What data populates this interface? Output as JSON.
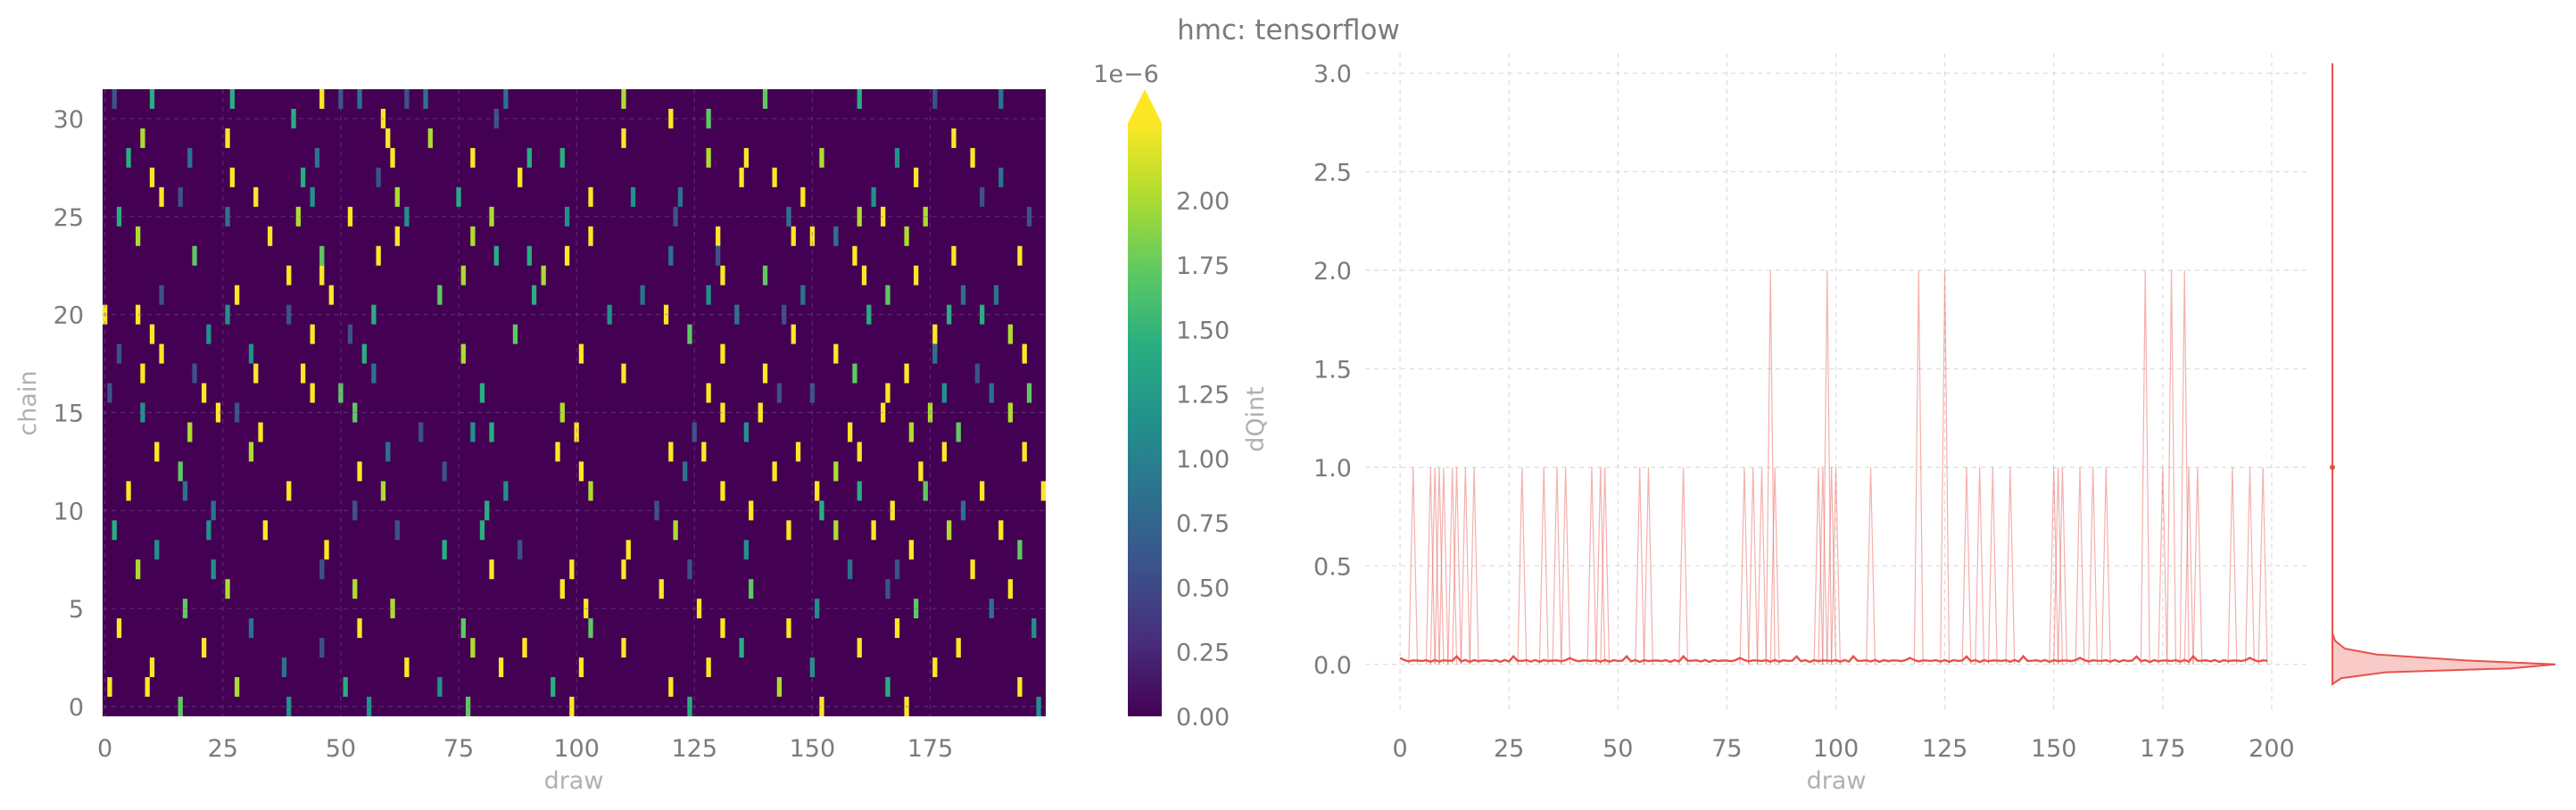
{
  "figure": {
    "title": "hmc: tensorflow"
  },
  "chart_data": [
    {
      "type": "heatmap",
      "title": "",
      "xlabel": "draw",
      "ylabel": "chain",
      "xlim": [
        0,
        199
      ],
      "ylim": [
        0,
        31
      ],
      "x_ticks": [
        "0",
        "25",
        "50",
        "75",
        "100",
        "125",
        "150",
        "175"
      ],
      "y_ticks": [
        "0",
        "5",
        "10",
        "15",
        "20",
        "25",
        "30"
      ],
      "n_draws": 200,
      "n_chains": 32,
      "colormap": "viridis",
      "value_range": [
        0,
        2.2e-06
      ],
      "colorbar": {
        "label": "dQint",
        "offset_text": "1e−6",
        "ticks": [
          "0.00",
          "0.25",
          "0.50",
          "0.75",
          "1.00",
          "1.25",
          "1.50",
          "1.75",
          "2.00"
        ],
        "extend": "max"
      },
      "nonzero_cells": [
        [
          2,
          31
        ],
        [
          10,
          31
        ],
        [
          27,
          31
        ],
        [
          46,
          31
        ],
        [
          50,
          31
        ],
        [
          54,
          31
        ],
        [
          64,
          31
        ],
        [
          68,
          31
        ],
        [
          85,
          31
        ],
        [
          110,
          31
        ],
        [
          140,
          31
        ],
        [
          160,
          31
        ],
        [
          176,
          31
        ],
        [
          190,
          31
        ],
        [
          40,
          30
        ],
        [
          59,
          30
        ],
        [
          83,
          30
        ],
        [
          128,
          30
        ],
        [
          120,
          30
        ],
        [
          8,
          29
        ],
        [
          26,
          29
        ],
        [
          60,
          29
        ],
        [
          69,
          29
        ],
        [
          110,
          29
        ],
        [
          180,
          29
        ],
        [
          5,
          28
        ],
        [
          18,
          28
        ],
        [
          45,
          28
        ],
        [
          61,
          28
        ],
        [
          78,
          28
        ],
        [
          90,
          28
        ],
        [
          97,
          28
        ],
        [
          128,
          28
        ],
        [
          136,
          28
        ],
        [
          152,
          28
        ],
        [
          168,
          28
        ],
        [
          184,
          28
        ],
        [
          10,
          27
        ],
        [
          27,
          27
        ],
        [
          42,
          27
        ],
        [
          58,
          27
        ],
        [
          88,
          27
        ],
        [
          135,
          27
        ],
        [
          142,
          27
        ],
        [
          172,
          27
        ],
        [
          190,
          27
        ],
        [
          12,
          26
        ],
        [
          16,
          26
        ],
        [
          32,
          26
        ],
        [
          44,
          26
        ],
        [
          62,
          26
        ],
        [
          75,
          26
        ],
        [
          103,
          26
        ],
        [
          112,
          26
        ],
        [
          122,
          26
        ],
        [
          148,
          26
        ],
        [
          163,
          26
        ],
        [
          186,
          26
        ],
        [
          3,
          25
        ],
        [
          26,
          25
        ],
        [
          41,
          25
        ],
        [
          52,
          25
        ],
        [
          64,
          25
        ],
        [
          82,
          25
        ],
        [
          98,
          25
        ],
        [
          121,
          25
        ],
        [
          145,
          25
        ],
        [
          160,
          25
        ],
        [
          165,
          25
        ],
        [
          174,
          25
        ],
        [
          196,
          25
        ],
        [
          7,
          24
        ],
        [
          35,
          24
        ],
        [
          62,
          24
        ],
        [
          78,
          24
        ],
        [
          103,
          24
        ],
        [
          130,
          24
        ],
        [
          146,
          24
        ],
        [
          150,
          24
        ],
        [
          155,
          24
        ],
        [
          170,
          24
        ],
        [
          19,
          23
        ],
        [
          46,
          23
        ],
        [
          58,
          23
        ],
        [
          83,
          23
        ],
        [
          90,
          23
        ],
        [
          98,
          23
        ],
        [
          120,
          23
        ],
        [
          130,
          23
        ],
        [
          159,
          23
        ],
        [
          180,
          23
        ],
        [
          194,
          23
        ],
        [
          39,
          22
        ],
        [
          46,
          22
        ],
        [
          76,
          22
        ],
        [
          93,
          22
        ],
        [
          131,
          22
        ],
        [
          140,
          22
        ],
        [
          161,
          22
        ],
        [
          172,
          22
        ],
        [
          12,
          21
        ],
        [
          28,
          21
        ],
        [
          48,
          21
        ],
        [
          71,
          21
        ],
        [
          91,
          21
        ],
        [
          114,
          21
        ],
        [
          128,
          21
        ],
        [
          148,
          21
        ],
        [
          166,
          21
        ],
        [
          182,
          21
        ],
        [
          189,
          21
        ],
        [
          0,
          20
        ],
        [
          7,
          20
        ],
        [
          26,
          20
        ],
        [
          39,
          20
        ],
        [
          57,
          20
        ],
        [
          107,
          20
        ],
        [
          119,
          20
        ],
        [
          134,
          20
        ],
        [
          144,
          20
        ],
        [
          162,
          20
        ],
        [
          179,
          20
        ],
        [
          186,
          20
        ],
        [
          10,
          19
        ],
        [
          22,
          19
        ],
        [
          44,
          19
        ],
        [
          52,
          19
        ],
        [
          87,
          19
        ],
        [
          124,
          19
        ],
        [
          146,
          19
        ],
        [
          176,
          19
        ],
        [
          192,
          19
        ],
        [
          3,
          18
        ],
        [
          12,
          18
        ],
        [
          31,
          18
        ],
        [
          55,
          18
        ],
        [
          76,
          18
        ],
        [
          101,
          18
        ],
        [
          131,
          18
        ],
        [
          155,
          18
        ],
        [
          176,
          18
        ],
        [
          195,
          18
        ],
        [
          8,
          17
        ],
        [
          19,
          17
        ],
        [
          32,
          17
        ],
        [
          42,
          17
        ],
        [
          57,
          17
        ],
        [
          110,
          17
        ],
        [
          140,
          17
        ],
        [
          159,
          17
        ],
        [
          170,
          17
        ],
        [
          185,
          17
        ],
        [
          1,
          16
        ],
        [
          21,
          16
        ],
        [
          44,
          16
        ],
        [
          50,
          16
        ],
        [
          80,
          16
        ],
        [
          128,
          16
        ],
        [
          143,
          16
        ],
        [
          150,
          16
        ],
        [
          166,
          16
        ],
        [
          178,
          16
        ],
        [
          188,
          16
        ],
        [
          196,
          16
        ],
        [
          8,
          15
        ],
        [
          24,
          15
        ],
        [
          28,
          15
        ],
        [
          53,
          15
        ],
        [
          97,
          15
        ],
        [
          131,
          15
        ],
        [
          139,
          15
        ],
        [
          165,
          15
        ],
        [
          175,
          15
        ],
        [
          192,
          15
        ],
        [
          18,
          14
        ],
        [
          33,
          14
        ],
        [
          67,
          14
        ],
        [
          78,
          14
        ],
        [
          82,
          14
        ],
        [
          100,
          14
        ],
        [
          125,
          14
        ],
        [
          136,
          14
        ],
        [
          158,
          14
        ],
        [
          171,
          14
        ],
        [
          181,
          14
        ],
        [
          11,
          13
        ],
        [
          31,
          13
        ],
        [
          60,
          13
        ],
        [
          96,
          13
        ],
        [
          120,
          13
        ],
        [
          127,
          13
        ],
        [
          147,
          13
        ],
        [
          160,
          13
        ],
        [
          178,
          13
        ],
        [
          195,
          13
        ],
        [
          16,
          12
        ],
        [
          54,
          12
        ],
        [
          72,
          12
        ],
        [
          101,
          12
        ],
        [
          123,
          12
        ],
        [
          142,
          12
        ],
        [
          155,
          12
        ],
        [
          173,
          12
        ],
        [
          5,
          11
        ],
        [
          17,
          11
        ],
        [
          39,
          11
        ],
        [
          59,
          11
        ],
        [
          85,
          11
        ],
        [
          103,
          11
        ],
        [
          131,
          11
        ],
        [
          151,
          11
        ],
        [
          160,
          11
        ],
        [
          174,
          11
        ],
        [
          186,
          11
        ],
        [
          199,
          11
        ],
        [
          23,
          10
        ],
        [
          53,
          10
        ],
        [
          81,
          10
        ],
        [
          117,
          10
        ],
        [
          137,
          10
        ],
        [
          152,
          10
        ],
        [
          167,
          10
        ],
        [
          182,
          10
        ],
        [
          2,
          9
        ],
        [
          22,
          9
        ],
        [
          34,
          9
        ],
        [
          62,
          9
        ],
        [
          80,
          9
        ],
        [
          121,
          9
        ],
        [
          145,
          9
        ],
        [
          155,
          9
        ],
        [
          163,
          9
        ],
        [
          179,
          9
        ],
        [
          190,
          9
        ],
        [
          11,
          8
        ],
        [
          47,
          8
        ],
        [
          72,
          8
        ],
        [
          88,
          8
        ],
        [
          111,
          8
        ],
        [
          136,
          8
        ],
        [
          171,
          8
        ],
        [
          194,
          8
        ],
        [
          7,
          7
        ],
        [
          23,
          7
        ],
        [
          46,
          7
        ],
        [
          82,
          7
        ],
        [
          99,
          7
        ],
        [
          110,
          7
        ],
        [
          124,
          7
        ],
        [
          158,
          7
        ],
        [
          168,
          7
        ],
        [
          184,
          7
        ],
        [
          26,
          6
        ],
        [
          53,
          6
        ],
        [
          97,
          6
        ],
        [
          118,
          6
        ],
        [
          137,
          6
        ],
        [
          166,
          6
        ],
        [
          192,
          6
        ],
        [
          17,
          5
        ],
        [
          61,
          5
        ],
        [
          102,
          5
        ],
        [
          126,
          5
        ],
        [
          151,
          5
        ],
        [
          172,
          5
        ],
        [
          188,
          5
        ],
        [
          3,
          4
        ],
        [
          31,
          4
        ],
        [
          54,
          4
        ],
        [
          76,
          4
        ],
        [
          103,
          4
        ],
        [
          131,
          4
        ],
        [
          145,
          4
        ],
        [
          168,
          4
        ],
        [
          197,
          4
        ],
        [
          21,
          3
        ],
        [
          46,
          3
        ],
        [
          78,
          3
        ],
        [
          89,
          3
        ],
        [
          110,
          3
        ],
        [
          135,
          3
        ],
        [
          160,
          3
        ],
        [
          181,
          3
        ],
        [
          10,
          2
        ],
        [
          38,
          2
        ],
        [
          64,
          2
        ],
        [
          84,
          2
        ],
        [
          101,
          2
        ],
        [
          128,
          2
        ],
        [
          150,
          2
        ],
        [
          176,
          2
        ],
        [
          1,
          1
        ],
        [
          9,
          1
        ],
        [
          28,
          1
        ],
        [
          51,
          1
        ],
        [
          71,
          1
        ],
        [
          95,
          1
        ],
        [
          120,
          1
        ],
        [
          143,
          1
        ],
        [
          166,
          1
        ],
        [
          194,
          1
        ],
        [
          16,
          0
        ],
        [
          39,
          0
        ],
        [
          56,
          0
        ],
        [
          77,
          0
        ],
        [
          99,
          0
        ],
        [
          124,
          0
        ],
        [
          152,
          0
        ],
        [
          170,
          0
        ],
        [
          198,
          0
        ]
      ]
    },
    {
      "type": "line",
      "title": "",
      "xlabel": "draw",
      "ylabel": "",
      "xlim": [
        -8,
        208
      ],
      "ylim": [
        -0.25,
        3.1
      ],
      "x_ticks": [
        "0",
        "25",
        "50",
        "75",
        "100",
        "125",
        "150",
        "175",
        "200"
      ],
      "y_ticks": [
        "0.0",
        "0.5",
        "1.0",
        "1.5",
        "2.0",
        "2.5",
        "3.0"
      ],
      "series_color": "#e5534b",
      "chains": 32,
      "spikes": [
        {
          "x": 3,
          "y": 1
        },
        {
          "x": 7,
          "y": 1
        },
        {
          "x": 8,
          "y": 1
        },
        {
          "x": 9,
          "y": 1
        },
        {
          "x": 10,
          "y": 1
        },
        {
          "x": 12,
          "y": 1
        },
        {
          "x": 13,
          "y": 1
        },
        {
          "x": 15,
          "y": 1
        },
        {
          "x": 17,
          "y": 1
        },
        {
          "x": 28,
          "y": 1
        },
        {
          "x": 33,
          "y": 1
        },
        {
          "x": 36,
          "y": 1
        },
        {
          "x": 38,
          "y": 1
        },
        {
          "x": 44,
          "y": 1
        },
        {
          "x": 46,
          "y": 1
        },
        {
          "x": 47,
          "y": 1
        },
        {
          "x": 55,
          "y": 1
        },
        {
          "x": 57,
          "y": 1
        },
        {
          "x": 65,
          "y": 1
        },
        {
          "x": 79,
          "y": 1
        },
        {
          "x": 81,
          "y": 1
        },
        {
          "x": 83,
          "y": 1
        },
        {
          "x": 85,
          "y": 2
        },
        {
          "x": 86,
          "y": 1
        },
        {
          "x": 96,
          "y": 1
        },
        {
          "x": 97,
          "y": 1
        },
        {
          "x": 98,
          "y": 2
        },
        {
          "x": 99,
          "y": 1
        },
        {
          "x": 100,
          "y": 1
        },
        {
          "x": 108,
          "y": 1
        },
        {
          "x": 119,
          "y": 2
        },
        {
          "x": 125,
          "y": 2
        },
        {
          "x": 130,
          "y": 1
        },
        {
          "x": 133,
          "y": 1
        },
        {
          "x": 136,
          "y": 1
        },
        {
          "x": 140,
          "y": 1
        },
        {
          "x": 150,
          "y": 1
        },
        {
          "x": 151,
          "y": 1
        },
        {
          "x": 152,
          "y": 1
        },
        {
          "x": 156,
          "y": 1
        },
        {
          "x": 159,
          "y": 1
        },
        {
          "x": 162,
          "y": 1
        },
        {
          "x": 171,
          "y": 2
        },
        {
          "x": 175,
          "y": 1
        },
        {
          "x": 177,
          "y": 2
        },
        {
          "x": 180,
          "y": 2
        },
        {
          "x": 181,
          "y": 1
        },
        {
          "x": 183,
          "y": 1
        },
        {
          "x": 191,
          "y": 1
        },
        {
          "x": 195,
          "y": 1
        },
        {
          "x": 198,
          "y": 1
        }
      ],
      "density": {
        "orientation": "vertical",
        "peak_y": 0.0,
        "secondary_y": 1.0
      }
    }
  ]
}
